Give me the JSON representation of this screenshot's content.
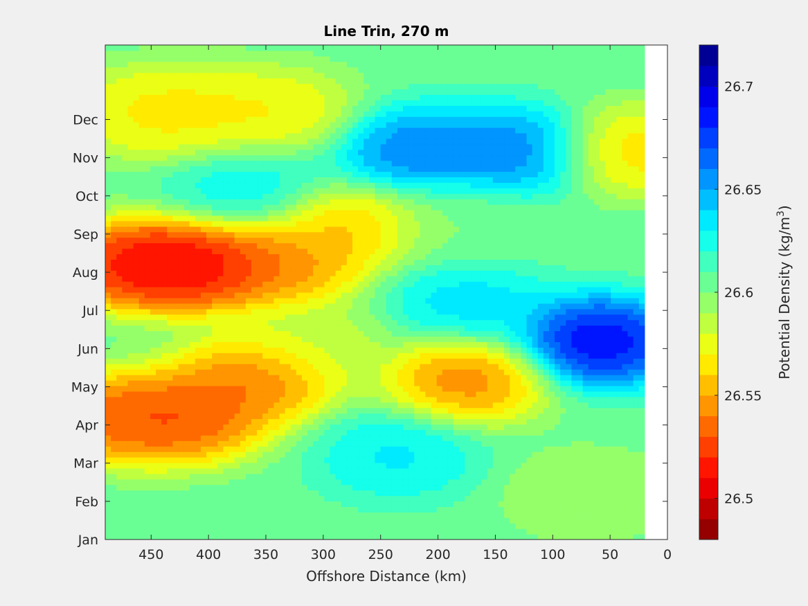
{
  "chart_data": {
    "type": "heatmap",
    "title": "Line Trin, 270 m",
    "xlabel": "Offshore Distance (km)",
    "ylabel": "",
    "xlim": [
      490,
      0
    ],
    "x_reversed": true,
    "x_ticks": [
      450,
      400,
      350,
      300,
      250,
      200,
      150,
      100,
      50,
      0
    ],
    "y_categories": [
      "Jan",
      "Feb",
      "Mar",
      "Apr",
      "May",
      "Jun",
      "Jul",
      "Aug",
      "Sep",
      "Oct",
      "Nov",
      "Dec"
    ],
    "data_extent_x_min_km": 20,
    "colorbar": {
      "label": "Potential Density (kg/m³)",
      "label_prefix": "Potential Density (kg/m",
      "label_exponent": "3",
      "label_suffix": ")",
      "range": [
        26.48,
        26.72
      ],
      "ticks": [
        "26.5",
        "26.55",
        "26.6",
        "26.65",
        "26.7"
      ],
      "tick_values": [
        26.5,
        26.55,
        26.6,
        26.65,
        26.7
      ],
      "levels": 24,
      "colormap": "jet"
    },
    "features": [
      {
        "x": 460,
        "y": "Aug",
        "value": 26.487
      },
      {
        "x": 400,
        "y": "Aug",
        "value": 26.488
      },
      {
        "x": 420,
        "y": "Apr",
        "value": 26.51
      },
      {
        "x": 480,
        "y": "Apr",
        "value": 26.515
      },
      {
        "x": 360,
        "y": "May",
        "value": 26.52
      },
      {
        "x": 175,
        "y": "May",
        "value": 26.525
      },
      {
        "x": 335,
        "y": "Aug",
        "value": 26.53
      },
      {
        "x": 280,
        "y": "Sep",
        "value": 26.545
      },
      {
        "x": 455,
        "y": "Dec",
        "value": 26.56
      },
      {
        "x": 410,
        "y": "Dec",
        "value": 26.56
      },
      {
        "x": 340,
        "y": "Dec",
        "value": 26.56
      },
      {
        "x": 35,
        "y": "Nov",
        "value": 26.55
      },
      {
        "x": 70,
        "y": "Feb",
        "value": 26.585
      },
      {
        "x": 310,
        "y": "Jun",
        "value": 26.58
      },
      {
        "x": 220,
        "y": "Nov",
        "value": 26.675
      },
      {
        "x": 130,
        "y": "Nov",
        "value": 26.675
      },
      {
        "x": 60,
        "y": "Jun",
        "value": 26.715
      },
      {
        "x": 235,
        "y": "Mar",
        "value": 26.64
      },
      {
        "x": 365,
        "y": "Oct",
        "value": 26.635
      },
      {
        "x": 175,
        "y": "Jul",
        "value": 26.645
      },
      {
        "x": 180,
        "y": "Sep",
        "value": 26.6
      }
    ]
  }
}
